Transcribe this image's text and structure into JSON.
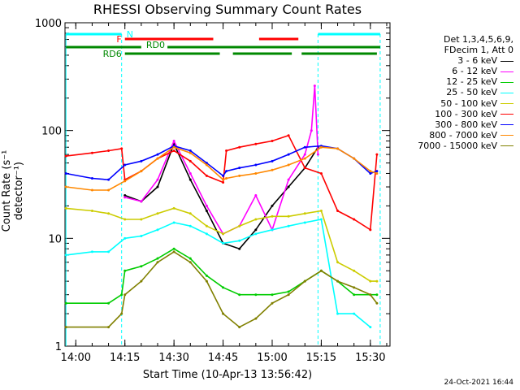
{
  "chart_data": {
    "type": "line",
    "title": "RHESSI Observing Summary Count Rates",
    "xlabel": "Start Time (10-Apr-13 13:56:42)",
    "ylabel": "Count Rate (s⁻¹ detector⁻¹)",
    "yscale": "log",
    "ylim": [
      1,
      1000
    ],
    "xlim": [
      "13:56:42",
      "15:36:00"
    ],
    "x_ticks": [
      "14:00",
      "14:15",
      "14:30",
      "14:45",
      "15:00",
      "15:15",
      "15:30"
    ],
    "y_ticks": [
      "1",
      "10",
      "100",
      "1000"
    ],
    "grid": false,
    "legend_position": "right",
    "legend_header": [
      "Det 1,3,4,5,6,9,",
      "FDecim 1, Att 0"
    ],
    "series": [
      {
        "name": "3 - 6 keV",
        "color": "#000000",
        "x": [
          "13:57",
          "14:10",
          "14:14",
          "14:15",
          "14:20",
          "14:25",
          "14:30",
          "14:35",
          "14:40",
          "14:45",
          "14:50",
          "14:55",
          "15:00",
          "15:05",
          "15:10",
          "15:14"
        ],
        "values": [
          null,
          null,
          null,
          25,
          22,
          30,
          75,
          35,
          18,
          9,
          8,
          12,
          20,
          30,
          45,
          70
        ]
      },
      {
        "name": "6 - 12 keV",
        "color": "#ff00ff",
        "x": [
          "14:15",
          "14:20",
          "14:25",
          "14:30",
          "14:35",
          "14:40",
          "14:45",
          "14:50",
          "14:55",
          "15:00",
          "15:05",
          "15:10",
          "15:12",
          "15:13",
          "15:14"
        ],
        "values": [
          24,
          22,
          35,
          80,
          40,
          20,
          11,
          13,
          25,
          12,
          35,
          60,
          100,
          260,
          60
        ]
      },
      {
        "name": "12 - 25 keV",
        "color": "#00cc00",
        "x": [
          "13:57",
          "14:10",
          "14:14",
          "14:15",
          "14:20",
          "14:25",
          "14:30",
          "14:35",
          "14:40",
          "14:45",
          "14:50",
          "14:55",
          "15:00",
          "15:05",
          "15:10",
          "15:15",
          "15:20",
          "15:25",
          "15:30",
          "15:32"
        ],
        "values": [
          2.5,
          2.5,
          3,
          5,
          5.5,
          6.5,
          8,
          6.5,
          4.5,
          3.5,
          3,
          3,
          3,
          3.2,
          4,
          5,
          4,
          3,
          3,
          3
        ]
      },
      {
        "name": "25 - 50 keV",
        "color": "#00ffff",
        "x": [
          "13:57",
          "14:05",
          "14:10",
          "14:15",
          "14:20",
          "14:25",
          "14:30",
          "14:35",
          "14:40",
          "14:45",
          "14:50",
          "14:55",
          "15:00",
          "15:05",
          "15:10",
          "15:15",
          "15:20",
          "15:25",
          "15:30"
        ],
        "values": [
          7,
          7.5,
          7.5,
          10,
          10.5,
          12,
          14,
          13,
          11,
          9,
          9.5,
          11,
          12,
          13,
          14,
          15,
          2,
          2,
          1.5
        ]
      },
      {
        "name": "50 - 100 keV",
        "color": "#cccc00",
        "x": [
          "13:57",
          "14:05",
          "14:10",
          "14:15",
          "14:20",
          "14:25",
          "14:30",
          "14:35",
          "14:40",
          "14:45",
          "14:50",
          "14:55",
          "15:00",
          "15:05",
          "15:10",
          "15:15",
          "15:20",
          "15:25",
          "15:30",
          "15:32"
        ],
        "values": [
          19,
          18,
          17,
          15,
          15,
          17,
          19,
          17,
          13,
          11,
          13,
          15,
          16,
          16,
          17,
          18,
          6,
          5,
          4,
          4
        ]
      },
      {
        "name": "100 - 300 keV",
        "color": "#ff0000",
        "x": [
          "13:57",
          "14:05",
          "14:10",
          "14:14",
          "14:15",
          "14:20",
          "14:25",
          "14:30",
          "14:35",
          "14:40",
          "14:45",
          "14:46",
          "14:50",
          "14:55",
          "15:00",
          "15:05",
          "15:10",
          "15:15",
          "15:20",
          "15:25",
          "15:30",
          "15:32"
        ],
        "values": [
          58,
          62,
          65,
          68,
          35,
          42,
          55,
          65,
          52,
          38,
          33,
          65,
          70,
          75,
          80,
          90,
          45,
          40,
          18,
          15,
          12,
          60
        ]
      },
      {
        "name": "300 - 800 keV",
        "color": "#0000ff",
        "x": [
          "13:57",
          "14:05",
          "14:10",
          "14:15",
          "14:20",
          "14:25",
          "14:30",
          "14:35",
          "14:40",
          "14:45",
          "14:46",
          "14:50",
          "14:55",
          "15:00",
          "15:05",
          "15:10",
          "15:15",
          "15:20",
          "15:25",
          "15:30",
          "15:32"
        ],
        "values": [
          40,
          36,
          35,
          48,
          52,
          60,
          72,
          65,
          50,
          38,
          42,
          45,
          48,
          52,
          60,
          70,
          72,
          68,
          55,
          40,
          42
        ]
      },
      {
        "name": "800 - 7000 keV",
        "color": "#ff8800",
        "x": [
          "13:57",
          "14:05",
          "14:10",
          "14:15",
          "14:20",
          "14:25",
          "14:30",
          "14:35",
          "14:40",
          "14:45",
          "14:46",
          "14:50",
          "14:55",
          "15:00",
          "15:05",
          "15:10",
          "15:15",
          "15:20",
          "15:25",
          "15:30",
          "15:32"
        ],
        "values": [
          30,
          28,
          28,
          34,
          42,
          55,
          70,
          62,
          48,
          35,
          36,
          38,
          40,
          43,
          48,
          55,
          70,
          68,
          55,
          42,
          40
        ]
      },
      {
        "name": "7000 - 15000 keV",
        "color": "#808000",
        "x": [
          "13:57",
          "14:10",
          "14:14",
          "14:15",
          "14:20",
          "14:25",
          "14:30",
          "14:35",
          "14:40",
          "14:45",
          "14:50",
          "14:55",
          "15:00",
          "15:05",
          "15:10",
          "15:15",
          "15:20",
          "15:25",
          "15:30",
          "15:32"
        ],
        "values": [
          1.5,
          1.5,
          2,
          3,
          4,
          6,
          7.5,
          6,
          4,
          2,
          1.5,
          1.8,
          2.5,
          3,
          4,
          5,
          4,
          3.5,
          3,
          2.5
        ]
      }
    ],
    "annotations": [
      {
        "text": "N",
        "color": "#00ffff",
        "row": "top",
        "spans": [
          [
            "13:57",
            "14:14"
          ],
          [
            "15:14",
            "15:33"
          ]
        ]
      },
      {
        "text": "F",
        "color": "#ff0000",
        "row": "upper",
        "spans": [
          [
            "14:15",
            "14:42"
          ],
          [
            "14:56",
            "15:08"
          ]
        ]
      },
      {
        "text": "RD0",
        "color": "#008800",
        "row": "middle",
        "spans": [
          [
            "13:57",
            "14:20"
          ],
          [
            "14:28",
            "15:33"
          ]
        ]
      },
      {
        "text": "RD6",
        "color": "#008800",
        "row": "lower",
        "spans": [
          [
            "14:15",
            "14:44"
          ],
          [
            "14:48",
            "15:06"
          ],
          [
            "15:09",
            "15:32"
          ]
        ]
      }
    ]
  },
  "footer": "24-Oct-2021 16:44"
}
